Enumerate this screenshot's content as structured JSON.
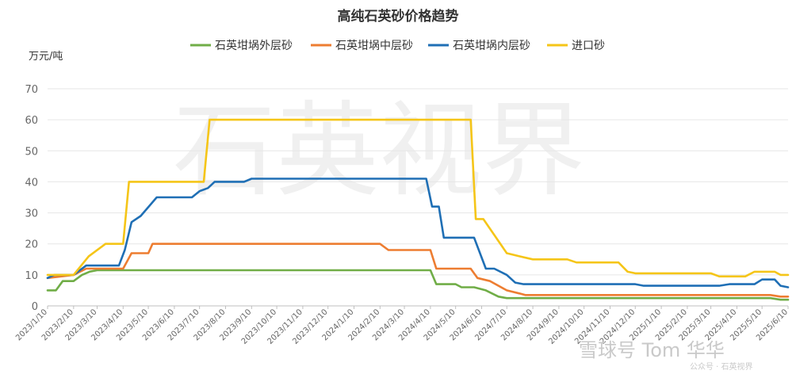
{
  "chart_data": {
    "type": "line",
    "title": "高纯石英砂价格趋势",
    "ylabel": "万元/吨",
    "xlabel": "",
    "ylim": [
      0,
      70
    ],
    "yticks": [
      0,
      10,
      20,
      30,
      40,
      50,
      60,
      70
    ],
    "xticks": [
      "2023/1/10",
      "2023/2/10",
      "2023/3/10",
      "2023/4/10",
      "2023/5/10",
      "2023/6/10",
      "2023/7/10",
      "2023/8/10",
      "2023/9/10",
      "2023/10/10",
      "2023/11/10",
      "2023/12/10",
      "2024/1/10",
      "2024/2/10",
      "2024/3/10",
      "2024/4/10",
      "2024/5/10",
      "2024/6/10",
      "2024/7/10",
      "2024/8/10",
      "2024/9/10",
      "2024/10/10",
      "2024/11/10",
      "2024/12/10",
      "2025/1/10",
      "2025/2/10",
      "2025/3/10",
      "2025/4/10",
      "2025/5/10",
      "2025/6/10"
    ],
    "grid": "horizontal",
    "legend_position": "top-center",
    "series": [
      {
        "name": "石英坩埚外层砂",
        "color": "#70ad47",
        "points": [
          [
            "2023/1/10",
            5
          ],
          [
            "2023/1/20",
            5
          ],
          [
            "2023/1/28",
            8
          ],
          [
            "2023/2/10",
            8
          ],
          [
            "2023/2/20",
            10
          ],
          [
            "2023/3/1",
            11
          ],
          [
            "2023/3/10",
            11.5
          ],
          [
            "2024/4/10",
            11.5
          ],
          [
            "2024/4/17",
            7
          ],
          [
            "2024/5/10",
            7
          ],
          [
            "2024/5/17",
            6
          ],
          [
            "2024/6/1",
            6
          ],
          [
            "2024/6/15",
            5
          ],
          [
            "2024/6/30",
            3
          ],
          [
            "2024/7/10",
            2.5
          ],
          [
            "2025/5/20",
            2.5
          ],
          [
            "2025/6/1",
            2
          ],
          [
            "2025/6/10",
            2
          ]
        ]
      },
      {
        "name": "石英坩埚中层砂",
        "color": "#ed7d31",
        "points": [
          [
            "2023/1/10",
            9
          ],
          [
            "2023/2/10",
            10
          ],
          [
            "2023/2/25",
            12
          ],
          [
            "2023/4/10",
            12
          ],
          [
            "2023/4/20",
            17
          ],
          [
            "2023/5/10",
            17
          ],
          [
            "2023/5/15",
            20
          ],
          [
            "2024/2/10",
            20
          ],
          [
            "2024/2/20",
            18
          ],
          [
            "2024/4/10",
            18
          ],
          [
            "2024/4/17",
            12
          ],
          [
            "2024/5/28",
            12
          ],
          [
            "2024/6/5",
            9
          ],
          [
            "2024/6/20",
            8
          ],
          [
            "2024/7/10",
            5
          ],
          [
            "2024/7/25",
            4
          ],
          [
            "2024/8/1",
            3.5
          ],
          [
            "2025/5/20",
            3.5
          ],
          [
            "2025/6/1",
            3
          ],
          [
            "2025/6/10",
            3
          ]
        ]
      },
      {
        "name": "石英坩埚内层砂",
        "color": "#1f6fb5",
        "points": [
          [
            "2023/1/10",
            9
          ],
          [
            "2023/1/18",
            10
          ],
          [
            "2023/2/10",
            10
          ],
          [
            "2023/2/25",
            13
          ],
          [
            "2023/4/5",
            13
          ],
          [
            "2023/4/12",
            18
          ],
          [
            "2023/4/20",
            27
          ],
          [
            "2023/5/1",
            29
          ],
          [
            "2023/5/20",
            35
          ],
          [
            "2023/7/1",
            35
          ],
          [
            "2023/7/10",
            37
          ],
          [
            "2023/7/20",
            38
          ],
          [
            "2023/7/28",
            40
          ],
          [
            "2023/9/1",
            40
          ],
          [
            "2023/9/10",
            41
          ],
          [
            "2024/4/5",
            41
          ],
          [
            "2024/4/12",
            32
          ],
          [
            "2024/4/20",
            32
          ],
          [
            "2024/4/26",
            22
          ],
          [
            "2024/6/1",
            22
          ],
          [
            "2024/6/15",
            12
          ],
          [
            "2024/6/25",
            12
          ],
          [
            "2024/7/10",
            10
          ],
          [
            "2024/7/20",
            7.5
          ],
          [
            "2024/7/30",
            7
          ],
          [
            "2024/12/10",
            7
          ],
          [
            "2024/12/20",
            6.5
          ],
          [
            "2025/3/20",
            6.5
          ],
          [
            "2025/4/1",
            7
          ],
          [
            "2025/5/1",
            7
          ],
          [
            "2025/5/10",
            8.5
          ],
          [
            "2025/5/25",
            8.5
          ],
          [
            "2025/6/1",
            6.5
          ],
          [
            "2025/6/10",
            6
          ]
        ]
      },
      {
        "name": "进口砂",
        "color": "#f5c518",
        "points": [
          [
            "2023/1/10",
            10
          ],
          [
            "2023/2/10",
            10
          ],
          [
            "2023/2/28",
            16
          ],
          [
            "2023/3/20",
            20
          ],
          [
            "2023/4/10",
            20
          ],
          [
            "2023/4/17",
            40
          ],
          [
            "2023/7/15",
            40
          ],
          [
            "2023/7/22",
            60
          ],
          [
            "2024/5/28",
            60
          ],
          [
            "2024/6/3",
            28
          ],
          [
            "2024/6/12",
            28
          ],
          [
            "2024/7/10",
            17
          ],
          [
            "2024/7/25",
            16
          ],
          [
            "2024/8/10",
            15
          ],
          [
            "2024/9/20",
            15
          ],
          [
            "2024/10/1",
            14
          ],
          [
            "2024/11/20",
            14
          ],
          [
            "2024/12/1",
            11
          ],
          [
            "2024/12/10",
            10.5
          ],
          [
            "2025/3/10",
            10.5
          ],
          [
            "2025/3/20",
            9.5
          ],
          [
            "2025/4/20",
            9.5
          ],
          [
            "2025/5/1",
            11
          ],
          [
            "2025/5/25",
            11
          ],
          [
            "2025/6/1",
            10
          ],
          [
            "2025/6/10",
            10
          ]
        ]
      }
    ]
  },
  "watermark": {
    "center_text": "石英视界",
    "corner_text": "雪球号 Tom 华华",
    "corner_subtext": "公众号 · 石英视界"
  }
}
